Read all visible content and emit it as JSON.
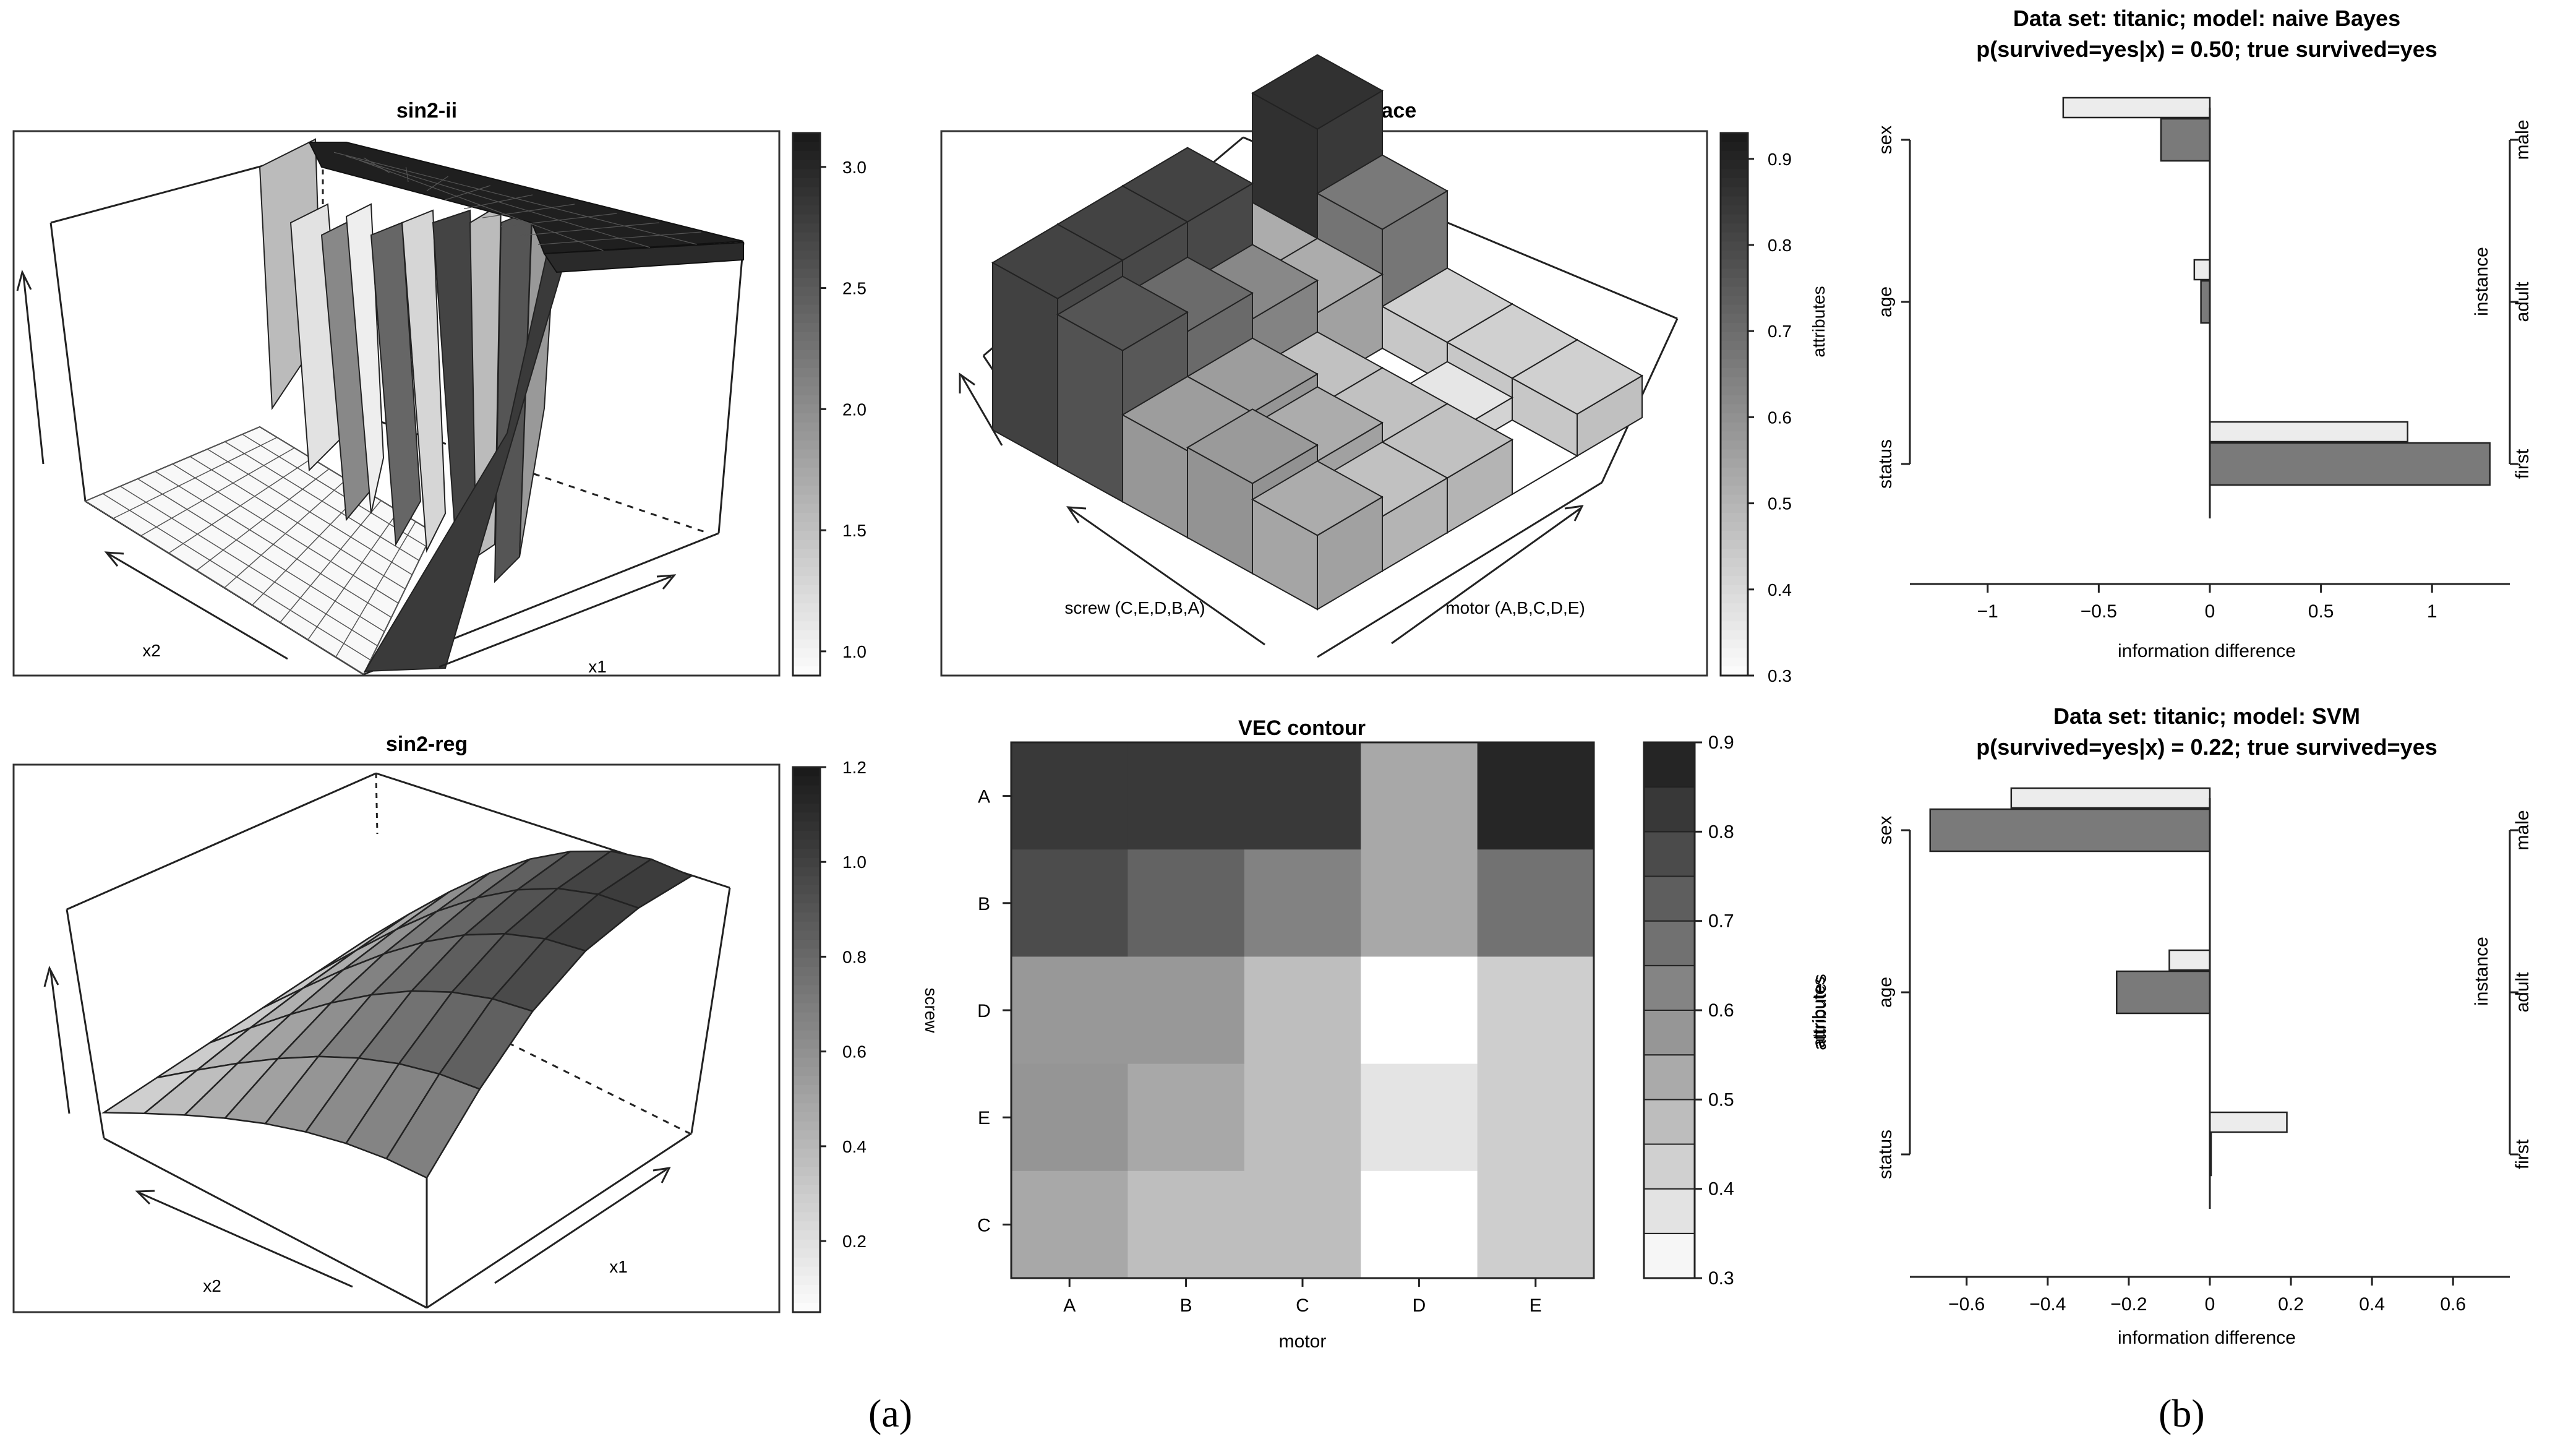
{
  "captions": {
    "a": "(a)",
    "b": "(b)"
  },
  "chart_data": [
    {
      "id": "sin2-ii",
      "type": "surface3d",
      "title": "sin2-ii",
      "xlabel": "x1",
      "ylabel": "x2",
      "colorbar": {
        "ticks": [
          1.0,
          1.5,
          2.0,
          2.5,
          3.0
        ],
        "tick_labels": [
          "1.0",
          "1.5",
          "2.0",
          "2.5",
          "3.0"
        ],
        "range": [
          0.9,
          3.14
        ]
      }
    },
    {
      "id": "sin2-reg",
      "type": "surface3d",
      "title": "sin2-reg",
      "xlabel": "x1",
      "ylabel": "x2",
      "colorbar": {
        "ticks": [
          0.2,
          0.4,
          0.6,
          0.8,
          1.0,
          1.2
        ],
        "tick_labels": [
          "0.2",
          "0.4",
          "0.6",
          "0.8",
          "1.0",
          "1.2"
        ],
        "range": [
          0.05,
          1.2
        ]
      }
    },
    {
      "id": "vec-surface",
      "type": "surface3d",
      "title": "VEC surface",
      "xlabel": "motor (A,B,C,D,E)",
      "ylabel": "screw (C,E,D,B,A)",
      "colorbar": {
        "label": "attributes",
        "ticks": [
          0.3,
          0.4,
          0.5,
          0.6,
          0.7,
          0.8,
          0.9
        ],
        "tick_labels": [
          "0.3",
          "0.4",
          "0.5",
          "0.6",
          "0.7",
          "0.8",
          "0.9"
        ],
        "range": [
          0.3,
          0.93
        ]
      }
    },
    {
      "id": "vec-contour",
      "type": "heatmap",
      "title": "VEC contour",
      "xlabel": "motor",
      "ylabel": "screw",
      "x": [
        "A",
        "B",
        "C",
        "D",
        "E"
      ],
      "y": [
        "A",
        "B",
        "D",
        "E",
        "C"
      ],
      "values": [
        [
          0.82,
          0.82,
          0.82,
          0.53,
          0.87
        ],
        [
          0.77,
          0.71,
          0.63,
          0.53,
          0.67
        ],
        [
          0.57,
          0.57,
          0.47,
          0.3,
          0.43
        ],
        [
          0.58,
          0.53,
          0.47,
          0.37,
          0.43
        ],
        [
          0.53,
          0.47,
          0.47,
          0.3,
          0.43
        ]
      ],
      "colorbar": {
        "label": "attributes",
        "levels": [
          0.3,
          0.35,
          0.4,
          0.45,
          0.5,
          0.55,
          0.6,
          0.65,
          0.7,
          0.75,
          0.8,
          0.85,
          0.9
        ],
        "tick_labels": [
          "0.3",
          "0.4",
          "0.5",
          "0.6",
          "0.7",
          "0.8",
          "0.9"
        ]
      }
    },
    {
      "id": "titanic-nb",
      "type": "bar",
      "orientation": "horizontal",
      "title": "Data set: titanic;  model: naive Bayes",
      "subtitle": "p(survived=yes|x) = 0.50;  true survived=yes",
      "xlabel": "information difference",
      "categories": [
        "sex",
        "age",
        "status"
      ],
      "instance_values": [
        "male",
        "adult",
        "first"
      ],
      "instance_label": "instance",
      "series": [
        {
          "values": [
            -0.66,
            -0.07,
            0.89
          ]
        },
        {
          "values": [
            -0.22,
            -0.04,
            1.26
          ]
        }
      ],
      "xlim": [
        -1.35,
        1.35
      ],
      "xticks": [
        -1,
        -0.5,
        0,
        0.5,
        1
      ],
      "xtick_labels": [
        "−1",
        "−0.5",
        "0",
        "0.5",
        "1"
      ]
    },
    {
      "id": "titanic-svm",
      "type": "bar",
      "orientation": "horizontal",
      "title": "Data set: titanic;  model: SVM",
      "subtitle": "p(survived=yes|x) = 0.22;  true survived=yes",
      "xlabel": "information difference",
      "ylabel": "attributes",
      "categories": [
        "sex",
        "age",
        "status"
      ],
      "instance_values": [
        "male",
        "adult",
        "first"
      ],
      "instance_label": "instance",
      "series": [
        {
          "values": [
            -0.49,
            -0.1,
            0.19
          ]
        },
        {
          "values": [
            -0.69,
            -0.23,
            0.0
          ]
        }
      ],
      "xlim": [
        -0.74,
        0.74
      ],
      "xticks": [
        -0.6,
        -0.4,
        -0.2,
        0,
        0.2,
        0.4,
        0.6
      ],
      "xtick_labels": [
        "−0.6",
        "−0.4",
        "−0.2",
        "0",
        "0.2",
        "0.4",
        "0.6"
      ]
    }
  ]
}
